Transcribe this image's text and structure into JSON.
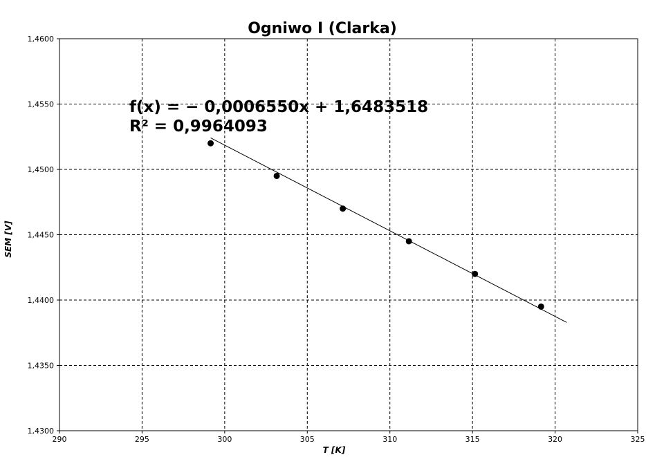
{
  "chart_data": {
    "type": "scatter",
    "title": "Ogniwo I (Clarka)",
    "xlabel": "T [K]",
    "ylabel": "SEM [V]",
    "xlim": [
      290,
      325
    ],
    "ylim": [
      1.43,
      1.46
    ],
    "x_ticks": [
      290,
      295,
      300,
      305,
      310,
      315,
      320,
      325
    ],
    "x_tick_labels": [
      "290",
      "295",
      "300",
      "305",
      "310",
      "315",
      "320",
      "325"
    ],
    "y_ticks": [
      1.43,
      1.435,
      1.44,
      1.445,
      1.45,
      1.455,
      1.46
    ],
    "y_tick_labels": [
      "1,4300",
      "1,4350",
      "1,4400",
      "1,4450",
      "1,4500",
      "1,4550",
      "1,4600"
    ],
    "grid": true,
    "series": [
      {
        "x": [
          299.15,
          303.15,
          307.15,
          311.15,
          315.15,
          319.15
        ],
        "y": [
          1.452,
          1.4495,
          1.447,
          1.4445,
          1.442,
          1.4395
        ]
      }
    ],
    "trendline": {
      "slope": -0.000655,
      "intercept": 1.6483518,
      "x_range": [
        299.15,
        320.7
      ]
    },
    "annotations": [
      "f(x) = − 0,0006550x + 1,6483518",
      "R² = 0,9964093"
    ]
  }
}
